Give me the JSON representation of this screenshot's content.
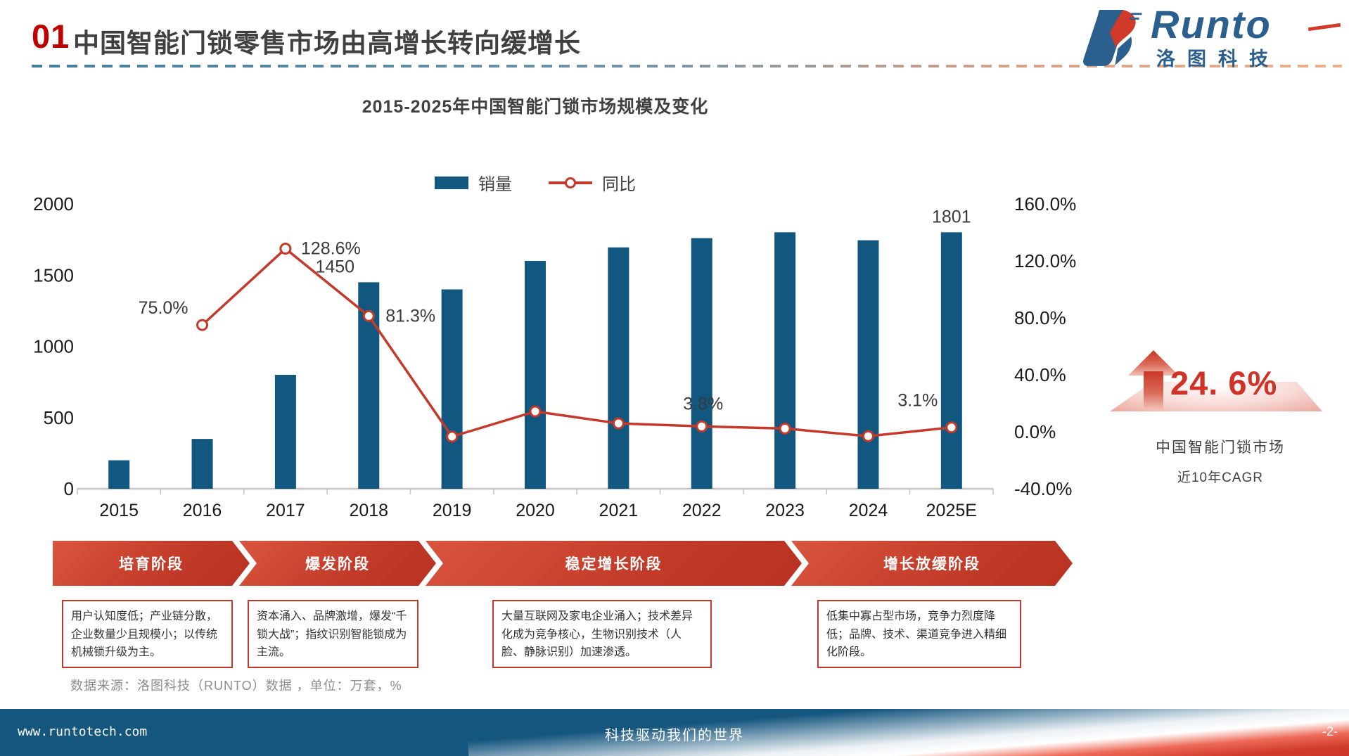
{
  "header": {
    "number": "01",
    "title": "中国智能门锁零售市场由高增长转向缓增长"
  },
  "logo": {
    "name": "Runto",
    "cn": "洛图科技",
    "icon": "runto-logo-icon"
  },
  "chart_data": {
    "type": "bar+line combo",
    "title": "2015-2025年中国智能门锁市场规模及变化",
    "categories": [
      "2015",
      "2016",
      "2017",
      "2018",
      "2019",
      "2020",
      "2021",
      "2022",
      "2023",
      "2024",
      "2025E"
    ],
    "series": [
      {
        "id": "sales",
        "name": "销量",
        "type": "bar",
        "axis": "left",
        "values": [
          200,
          350,
          800,
          1450,
          1400,
          1600,
          1695,
          1760,
          1801,
          1745,
          1801
        ]
      },
      {
        "id": "yoy",
        "name": "同比",
        "type": "line",
        "axis": "right",
        "values": [
          null,
          75.0,
          128.6,
          81.3,
          -3.4,
          14.3,
          5.9,
          3.8,
          2.3,
          -3.1,
          3.1
        ]
      }
    ],
    "left_axis": {
      "ticks": [
        "2000",
        "1500",
        "1000",
        "500",
        "0"
      ],
      "min": 0,
      "max": 2000,
      "gridlines": false
    },
    "right_axis": {
      "ticks": [
        "160.0%",
        "120.0%",
        "80.0%",
        "40.0%",
        "0.0%",
        "-40.0%"
      ],
      "min": -40,
      "max": 160
    },
    "point_labels": [
      {
        "series": "sales",
        "category": "2018",
        "text": "1450"
      },
      {
        "series": "sales",
        "category": "2025E",
        "text": "1801"
      },
      {
        "series": "yoy",
        "category": "2016",
        "text": "75.0%"
      },
      {
        "series": "yoy",
        "category": "2017",
        "text": "128.6%"
      },
      {
        "series": "yoy",
        "category": "2018",
        "text": "81.3%"
      },
      {
        "series": "yoy",
        "category": "2022",
        "text": "3.8%"
      },
      {
        "series": "yoy",
        "category": "2025E",
        "text": "3.1%"
      }
    ],
    "legend_position": "top",
    "colors": {
      "bar": "#12577f",
      "line": "#c5392b",
      "axis": "#c3c3c3",
      "label": "#3a3a3a"
    }
  },
  "phases": [
    {
      "label": "培育阶段",
      "desc": "用户认知度低；产业链分散，企业数量少且规模小；以传统机械锁升级为主。"
    },
    {
      "label": "爆发阶段",
      "desc": "资本涌入、品牌激增，爆发“千锁大战”；指纹识别智能锁成为主流。"
    },
    {
      "label": "稳定增长阶段",
      "desc": "大量互联网及家电企业涌入；技术差异化成为竞争核心，生物识别技术（人脸、静脉识别）加速渗透。"
    },
    {
      "label": "增长放缓阶段",
      "desc": "低集中寡占型市场，竞争力烈度降低；品牌、技术、渠道竞争进入精细化阶段。"
    }
  ],
  "source_note": "数据来源：洛图科技（RUNTO）数据 ，单位：万套，%",
  "cagr": {
    "icon": "up-arrow-icon",
    "value": "24. 6%",
    "line1": "中国智能门锁市场",
    "line2": "近10年CAGR",
    "accent_color": "#cf3226"
  },
  "footer": {
    "left": "www.runtotech.com",
    "center": "科技驱动我们的世界",
    "right": "-2-"
  }
}
